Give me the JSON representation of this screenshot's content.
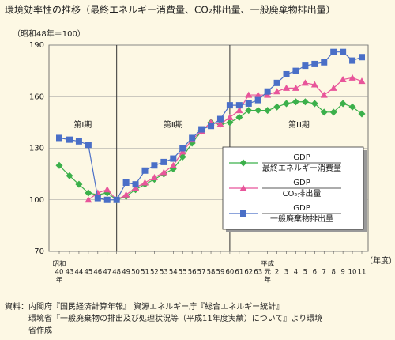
{
  "chart_data": {
    "type": "line",
    "title": "環境効率性の推移（最終エネルギー消費量、CO₂排出量、一般廃棄物排出量）",
    "y_label": "（昭和48年＝100）",
    "x_unit": "（年度）",
    "era_first": "昭和",
    "era_second": "平成",
    "era_suffix": "年",
    "periods": [
      "第Ⅰ期",
      "第Ⅱ期",
      "第Ⅲ期"
    ],
    "categories": [
      "40",
      "43",
      "44",
      "45",
      "46",
      "47",
      "48",
      "49",
      "50",
      "51",
      "52",
      "53",
      "54",
      "55",
      "56",
      "57",
      "58",
      "59",
      "60",
      "61",
      "62",
      "63",
      "元",
      "2",
      "3",
      "4",
      "5",
      "6",
      "7",
      "8",
      "9",
      "10",
      "11"
    ],
    "ylim": [
      70,
      190
    ],
    "yticks": [
      70,
      100,
      130,
      160,
      190
    ],
    "grid": true,
    "series": [
      {
        "name": "最終エネルギー消費量",
        "legend_numerator": "GDP",
        "color": "#3bb04a",
        "marker": "diamond",
        "values": [
          120,
          114,
          109,
          104,
          103,
          104,
          100,
          102,
          106,
          109,
          112,
          115,
          118,
          125,
          133,
          140,
          145,
          144,
          145,
          148,
          152,
          152,
          152,
          154,
          156,
          157,
          157,
          156,
          151,
          151,
          156,
          154,
          150
        ]
      },
      {
        "name": "CO₂排出量",
        "legend_numerator": "GDP",
        "color": "#e8559a",
        "marker": "triangle",
        "values": [
          null,
          null,
          null,
          100,
          104,
          106,
          100,
          103,
          107,
          110,
          113,
          116,
          120,
          128,
          135,
          140,
          145,
          144,
          148,
          152,
          161,
          161,
          161,
          163,
          165,
          165,
          168,
          167,
          161,
          165,
          170,
          171,
          169
        ]
      },
      {
        "name": "一般廃棄物排出量",
        "legend_numerator": "GDP",
        "color": "#4a6fc7",
        "marker": "square",
        "values": [
          136,
          135,
          134,
          132,
          101,
          100,
          100,
          110,
          109,
          117,
          120,
          122,
          124,
          130,
          136,
          141,
          143,
          147,
          155,
          155,
          156,
          158,
          163,
          168,
          173,
          175,
          178,
          179,
          180,
          186,
          186,
          181,
          183
        ]
      }
    ]
  },
  "source": [
    "資料：内閣府『国民経済計算年報』 資源エネルギー庁『総合エネルギー統計』",
    "　　　環境省『一般廃棄物の排出及び処理状況等（平成11年度実績）について』より環境",
    "　　　省作成"
  ]
}
